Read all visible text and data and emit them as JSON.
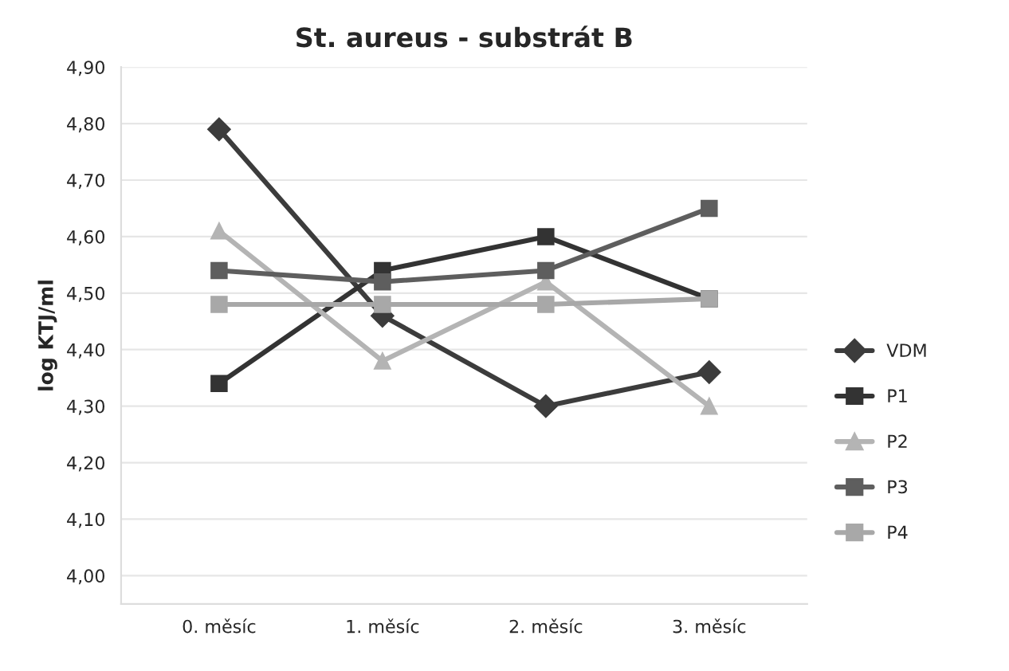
{
  "chart_data": {
    "type": "line",
    "title": "St. aureus - substrát B",
    "ylabel": "log KTJ/ml",
    "categories": [
      "0. měsíc",
      "1. měsíc",
      "2. měsíc",
      "3. měsíc"
    ],
    "series": [
      {
        "name": "VDM",
        "color": "#3c3c3c",
        "marker": "diamond",
        "values": [
          4.79,
          4.46,
          4.3,
          4.36
        ]
      },
      {
        "name": "P1",
        "color": "#333333",
        "marker": "square",
        "values": [
          4.34,
          4.54,
          4.6,
          4.49
        ]
      },
      {
        "name": "P2",
        "color": "#b4b4b4",
        "marker": "triangle",
        "values": [
          4.61,
          4.38,
          4.52,
          4.3
        ]
      },
      {
        "name": "P3",
        "color": "#5e5e5e",
        "marker": "square",
        "values": [
          4.54,
          4.52,
          4.54,
          4.65
        ]
      },
      {
        "name": "P4",
        "color": "#a8a8a8",
        "marker": "square",
        "values": [
          4.48,
          4.48,
          4.48,
          4.49
        ]
      }
    ],
    "ylim": [
      3.95,
      4.9
    ],
    "yticks": [
      {
        "value": 4.0,
        "label": "4,00"
      },
      {
        "value": 4.1,
        "label": "4,10"
      },
      {
        "value": 4.2,
        "label": "4,20"
      },
      {
        "value": 4.3,
        "label": "4,30"
      },
      {
        "value": 4.4,
        "label": "4,40"
      },
      {
        "value": 4.5,
        "label": "4,50"
      },
      {
        "value": 4.6,
        "label": "4,60"
      },
      {
        "value": 4.7,
        "label": "4,70"
      },
      {
        "value": 4.8,
        "label": "4,80"
      },
      {
        "value": 4.9,
        "label": "4,90"
      }
    ],
    "grid": "y",
    "legend": "right",
    "line_style": "solid"
  }
}
